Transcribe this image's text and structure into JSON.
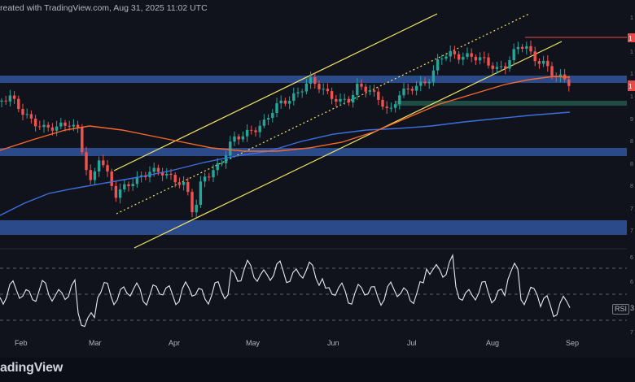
{
  "header": {
    "attribution": "reated with TradingView.com, Aug 31, 2025 11:02 UTC"
  },
  "footer": {
    "logo_text": "radingView"
  },
  "rsi_panel": {
    "tag": "RSI",
    "value_fragment": "3"
  },
  "colors": {
    "background": "#10131c",
    "up_candle": "#26a69a",
    "down_candle": "#ef5350",
    "zone": "#2a4a8a",
    "demand_zone": "#1f4d44",
    "channel": "#f5e663",
    "ema_fast": "#f7682c",
    "ema_slow": "#3d6fe0",
    "rsi_line": "#e6e9f0",
    "resistance_line": "#e84b4b"
  },
  "chart_data": {
    "type": "candlestick",
    "title": "",
    "x_tick_labels": [
      "Feb",
      "Mar",
      "Apr",
      "May",
      "Jun",
      "Jul",
      "Aug",
      "Sep"
    ],
    "right_axis_fragments": [
      "1",
      "1",
      "1",
      "1",
      "9",
      "8",
      "8",
      "8",
      "7",
      "7",
      "6",
      "6",
      "7"
    ],
    "price_tag_fragments": [
      "1",
      "1"
    ],
    "grid": false,
    "series": [
      {
        "name": "",
        "kind": "candles",
        "direction": "rise from March low, channel uptrend, top in mid-August, pullback into late August"
      },
      {
        "name": "",
        "kind": "ema_fast"
      },
      {
        "name": "",
        "kind": "ema_slow"
      },
      {
        "name": "RSI",
        "kind": "oscillator"
      }
    ]
  }
}
